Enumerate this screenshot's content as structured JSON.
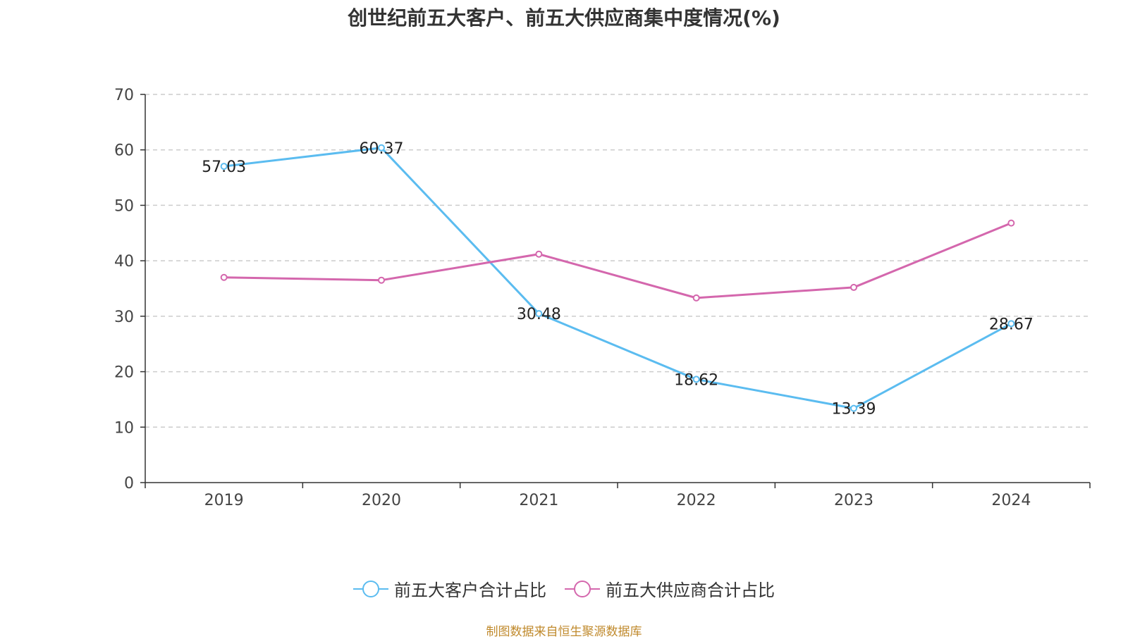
{
  "chart_data": {
    "type": "line",
    "title": "创世纪前五大客户、前五大供应商集中度情况(%)",
    "categories": [
      "2019",
      "2020",
      "2021",
      "2022",
      "2023",
      "2024"
    ],
    "ylim": [
      0,
      70
    ],
    "yticks": [
      0,
      10,
      20,
      30,
      40,
      50,
      60,
      70
    ],
    "grid": true,
    "legend": "bottom-center",
    "xlabel": "",
    "ylabel": "",
    "series": [
      {
        "name": "前五大客户合计占比",
        "color": "#5bbcf0",
        "values": [
          57.03,
          60.37,
          30.48,
          18.62,
          13.39,
          28.67
        ],
        "labels": [
          "57.03",
          "60.37",
          "30.48",
          "18.62",
          "13.39",
          "28.67"
        ],
        "show_labels": true
      },
      {
        "name": "前五大供应商合计占比",
        "color": "#d467ad",
        "values": [
          37.0,
          36.5,
          41.2,
          33.3,
          35.2,
          46.8
        ],
        "show_labels": false
      }
    ]
  },
  "source_note": "制图数据来自恒生聚源数据库"
}
